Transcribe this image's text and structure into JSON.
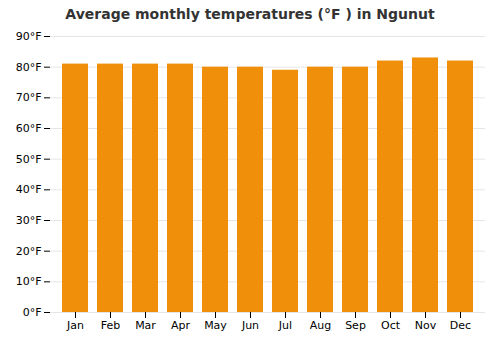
{
  "chart_data": {
    "type": "bar",
    "title": "Average monthly temperatures (°F ) in Ngunut",
    "categories": [
      "Jan",
      "Feb",
      "Mar",
      "Apr",
      "May",
      "Jun",
      "Jul",
      "Aug",
      "Sep",
      "Oct",
      "Nov",
      "Dec"
    ],
    "values": [
      81,
      81,
      81,
      81,
      80,
      80,
      79,
      80,
      80,
      82,
      83,
      82
    ],
    "color": "#F0900A",
    "ylim": [
      0,
      90
    ],
    "yticks": [
      {
        "value": 0,
        "label": "0°F"
      },
      {
        "value": 10,
        "label": "10°F"
      },
      {
        "value": 20,
        "label": "20°F"
      },
      {
        "value": 30,
        "label": "30°F"
      },
      {
        "value": 40,
        "label": "40°F"
      },
      {
        "value": 50,
        "label": "50°F"
      },
      {
        "value": 60,
        "label": "60°F"
      },
      {
        "value": 70,
        "label": "70°F"
      },
      {
        "value": 80,
        "label": "80°F"
      },
      {
        "value": 90,
        "label": "90°F"
      }
    ],
    "grid": true
  }
}
